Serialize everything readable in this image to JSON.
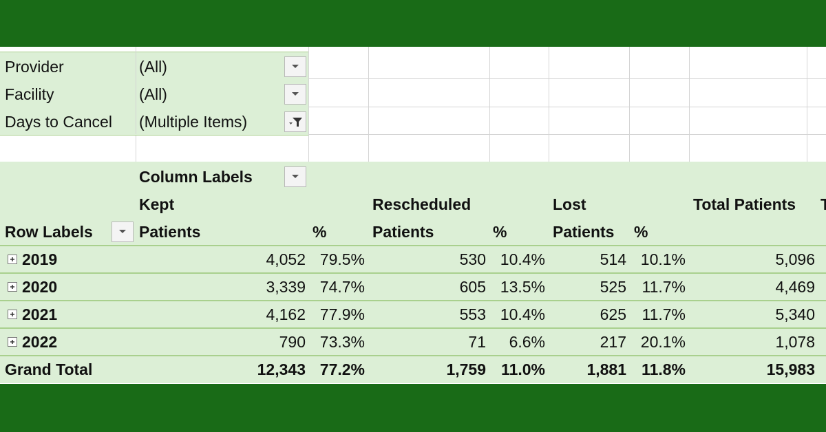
{
  "filters": [
    {
      "field": "Provider",
      "value": "(All)"
    },
    {
      "field": "Facility",
      "value": "(All)"
    },
    {
      "field": "Days to Cancel",
      "value": "(Multiple Items)"
    }
  ],
  "pivot": {
    "column_labels": "Column Labels",
    "row_labels": "Row Labels",
    "groups": [
      "Kept",
      "Rescheduled",
      "Lost",
      "Total Patients",
      "T"
    ],
    "subheaders": [
      "Patients",
      "%",
      "Patients",
      "%",
      "Patients",
      "%"
    ],
    "rows": [
      {
        "label": "2019",
        "cells": [
          "4,052",
          "79.5%",
          "530",
          "10.4%",
          "514",
          "10.1%",
          "5,096"
        ]
      },
      {
        "label": "2020",
        "cells": [
          "3,339",
          "74.7%",
          "605",
          "13.5%",
          "525",
          "11.7%",
          "4,469"
        ]
      },
      {
        "label": "2021",
        "cells": [
          "4,162",
          "77.9%",
          "553",
          "10.4%",
          "625",
          "11.7%",
          "5,340"
        ]
      },
      {
        "label": "2022",
        "cells": [
          "790",
          "73.3%",
          "71",
          "6.6%",
          "217",
          "20.1%",
          "1,078"
        ]
      }
    ],
    "grand_total": {
      "label": "Grand Total",
      "cells": [
        "12,343",
        "77.2%",
        "1,759",
        "11.0%",
        "1,881",
        "11.8%",
        "15,983"
      ]
    }
  }
}
